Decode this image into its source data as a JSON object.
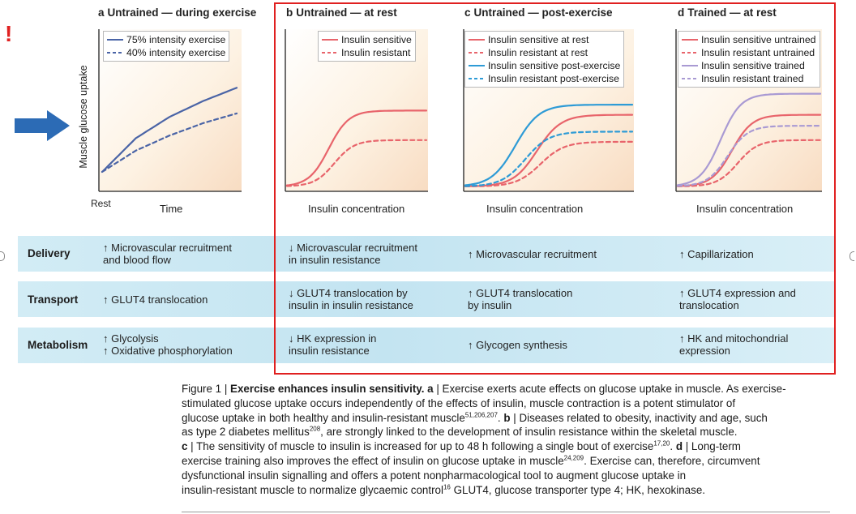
{
  "marks": {
    "exclamation": "!"
  },
  "colors": {
    "red": "#e8646b",
    "blue": "#2e9bd6",
    "purple": "#a99ad3",
    "navy": "#4a64a6",
    "frame": "#e02020",
    "arrow": "#2c6bb5"
  },
  "panels": {
    "a": {
      "letter": "a",
      "title": "Untrained — during exercise",
      "legend": [
        "75% intensity exercise",
        "40% intensity exercise"
      ],
      "ylabel": "Muscle glucose uptake",
      "x_start": "Rest",
      "xlabel": "Time"
    },
    "b": {
      "letter": "b",
      "title": "Untrained — at rest",
      "legend": [
        "Insulin sensitive",
        "Insulin resistant"
      ],
      "xlabel": "Insulin concentration"
    },
    "c": {
      "letter": "c",
      "title": "Untrained — post-exercise",
      "legend": [
        "Insulin sensitive at rest",
        "Insulin resistant at rest",
        "Insulin sensitive post-exercise",
        "Insulin resistant post-exercise"
      ],
      "xlabel": "Insulin concentration"
    },
    "d": {
      "letter": "d",
      "title": "Trained — at rest",
      "legend": [
        "Insulin sensitive untrained",
        "Insulin resistant untrained",
        "Insulin sensitive trained",
        "Insulin resistant trained"
      ],
      "xlabel": "Insulin concentration"
    }
  },
  "chart_data": [
    {
      "panel": "a",
      "type": "line",
      "title": "Untrained — during exercise",
      "xlabel": "Time",
      "ylabel": "Muscle glucose uptake",
      "x": [
        0,
        0.25,
        0.5,
        0.75,
        1.0
      ],
      "series": [
        {
          "name": "75% intensity exercise",
          "style": "solid",
          "color": "navy",
          "values": [
            0.0,
            0.38,
            0.62,
            0.8,
            0.95
          ]
        },
        {
          "name": "40% intensity exercise",
          "style": "dashed",
          "color": "navy",
          "values": [
            0.0,
            0.24,
            0.41,
            0.55,
            0.66
          ]
        }
      ]
    },
    {
      "panel": "b",
      "type": "line",
      "title": "Untrained — at rest",
      "xlabel": "Insulin concentration",
      "ylabel": "Muscle glucose uptake",
      "series": [
        {
          "name": "Insulin sensitive",
          "style": "solid",
          "color": "red",
          "start": 0.0,
          "end": 0.9,
          "midpoint": 0.3,
          "steepness": 14
        },
        {
          "name": "Insulin resistant",
          "style": "dashed",
          "color": "red",
          "start": 0.0,
          "end": 0.55,
          "midpoint": 0.34,
          "steepness": 14
        }
      ]
    },
    {
      "panel": "c",
      "type": "line",
      "title": "Untrained — post-exercise",
      "xlabel": "Insulin concentration",
      "ylabel": "Muscle glucose uptake",
      "series": [
        {
          "name": "Insulin sensitive at rest",
          "style": "solid",
          "color": "red",
          "start": 0.0,
          "end": 0.85,
          "midpoint": 0.43,
          "steepness": 14
        },
        {
          "name": "Insulin resistant at rest",
          "style": "dashed",
          "color": "red",
          "start": 0.0,
          "end": 0.53,
          "midpoint": 0.45,
          "steepness": 14
        },
        {
          "name": "Insulin sensitive post-exercise",
          "style": "solid",
          "color": "blue",
          "start": 0.0,
          "end": 0.97,
          "midpoint": 0.3,
          "steepness": 14
        },
        {
          "name": "Insulin resistant post-exercise",
          "style": "dashed",
          "color": "blue",
          "start": 0.0,
          "end": 0.65,
          "midpoint": 0.36,
          "steepness": 14
        }
      ]
    },
    {
      "panel": "d",
      "type": "line",
      "title": "Trained — at rest",
      "xlabel": "Insulin concentration",
      "ylabel": "Muscle glucose uptake",
      "series": [
        {
          "name": "Insulin sensitive untrained",
          "style": "solid",
          "color": "red",
          "start": 0.0,
          "end": 0.85,
          "midpoint": 0.38,
          "steepness": 14
        },
        {
          "name": "Insulin resistant untrained",
          "style": "dashed",
          "color": "red",
          "start": 0.0,
          "end": 0.55,
          "midpoint": 0.42,
          "steepness": 14
        },
        {
          "name": "Insulin sensitive trained",
          "style": "solid",
          "color": "purple",
          "start": 0.0,
          "end": 1.1,
          "midpoint": 0.3,
          "steepness": 14
        },
        {
          "name": "Insulin resistant trained",
          "style": "dashed",
          "color": "purple",
          "start": 0.0,
          "end": 0.72,
          "midpoint": 0.35,
          "steepness": 14
        }
      ]
    }
  ],
  "table": {
    "rows": [
      {
        "label": "Delivery",
        "cells": [
          [
            "↑ Microvascular recruitment",
            "and blood flow"
          ],
          [
            "↓ Microvascular recruitment",
            "in insulin resistance"
          ],
          [
            "↑ Microvascular recruitment"
          ],
          [
            "↑ Capillarization"
          ]
        ]
      },
      {
        "label": "Transport",
        "cells": [
          [
            "↑ GLUT4 translocation"
          ],
          [
            "↓ GLUT4 translocation by",
            "insulin in insulin resistance"
          ],
          [
            "↑ GLUT4 translocation",
            "by insulin"
          ],
          [
            "↑ GLUT4 expression and",
            "translocation"
          ]
        ]
      },
      {
        "label": "Metabolism",
        "cells": [
          [
            "↑ Glycolysis",
            "↑ Oxidative phosphorylation"
          ],
          [
            "↓ HK expression in",
            "insulin resistance"
          ],
          [
            "↑ Glycogen synthesis"
          ],
          [
            "↑ HK and mitochondrial",
            "expression"
          ]
        ]
      }
    ]
  },
  "caption": {
    "l1": {
      "a": "Figure 1 | ",
      "b": "Exercise enhances insulin sensitivity. a",
      "c": " | Exercise exerts acute effects on glucose uptake in muscle. As exercise-"
    },
    "l2": "stimulated glucose uptake occurs independently of the effects of insulin, muscle contraction is a potent stimulator of",
    "l3": {
      "a": "glucose uptake in both healthy and insulin-resistant muscle",
      "sup": "51,206,207",
      "b": ". ",
      "c": "b",
      "d": " | Diseases related to obesity, inactivity and age, such"
    },
    "l4": {
      "a": "as type 2 diabetes mellitus",
      "sup": "208",
      "b": ", are strongly linked to the development of insulin resistance within the skeletal muscle."
    },
    "l5": {
      "a": "c",
      "b": " | The sensitivity of muscle to insulin is increased for up to 48 h following a single bout of exercise",
      "sup": "17,20",
      "c": ". ",
      "d": "d",
      "e": " | Long-term"
    },
    "l6": {
      "a": "exercise training also improves the effect of insulin on glucose uptake in muscle",
      "sup": "24,209",
      "b": ". Exercise can, therefore, circumvent"
    },
    "l7": "dysfunctional insulin signalling and offers a potent nonpharmacological tool to augment glucose uptake in",
    "l8": {
      "a": "insulin-resistant muscle to normalize glycaemic control",
      "sup": "16",
      "b": " GLUT4, glucose transporter type 4; HK, hexokinase."
    }
  }
}
